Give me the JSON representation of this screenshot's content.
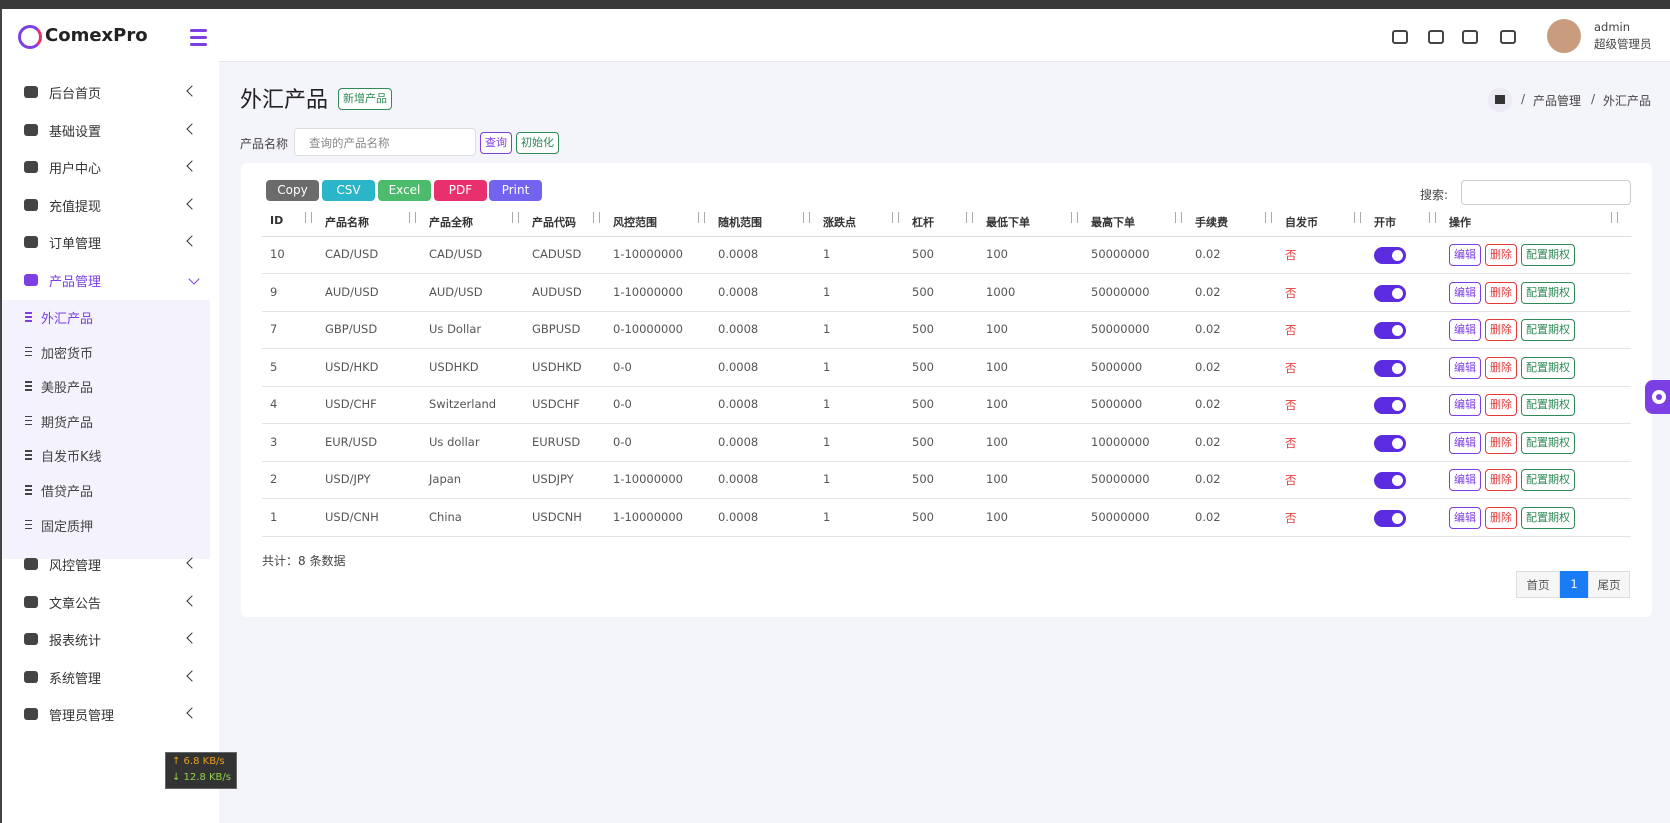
{
  "brand": "ComexPro",
  "user": {
    "name": "admin",
    "role": "超级管理员"
  },
  "menu": [
    {
      "label": "后台首页"
    },
    {
      "label": "基础设置"
    },
    {
      "label": "用户中心"
    },
    {
      "label": "充值提现"
    },
    {
      "label": "订单管理"
    },
    {
      "label": "产品管理",
      "children": [
        {
          "label": "外汇产品",
          "active": true
        },
        {
          "label": "加密货币"
        },
        {
          "label": "美股产品"
        },
        {
          "label": "期货产品"
        },
        {
          "label": "自发币K线"
        },
        {
          "label": "借贷产品"
        },
        {
          "label": "固定质押"
        }
      ]
    },
    {
      "label": "风控管理"
    },
    {
      "label": "文章公告"
    },
    {
      "label": "报表统计"
    },
    {
      "label": "系统管理"
    },
    {
      "label": "管理员管理"
    }
  ],
  "network": {
    "up": "↑ 6.8 KB/s",
    "down": "↓ 12.8 KB/s"
  },
  "page": {
    "title": "外汇产品",
    "add_button": "新增产品",
    "breadcrumb": [
      "产品管理",
      "外汇产品"
    ],
    "breadcrumb_separator": "/"
  },
  "filter": {
    "label": "产品名称",
    "placeholder": "查询的产品名称",
    "buttons": [
      "查询",
      "初始化"
    ]
  },
  "table": {
    "export_buttons": [
      "Copy",
      "CSV",
      "Excel",
      "PDF",
      "Print"
    ],
    "search_label": "搜索:",
    "columns": [
      "ID",
      "产品名称",
      "产品全称",
      "产品代码",
      "风控范围",
      "随机范围",
      "涨跌点",
      "杠杆",
      "最低下单",
      "最高下单",
      "手续费",
      "自发币",
      "开市",
      "操作"
    ],
    "rows": [
      [
        "10",
        "CAD/USD",
        "CAD/USD",
        "CADUSD",
        "1-10000000",
        "0.0008",
        "1",
        "500",
        "100",
        "50000000",
        "0.02",
        "否"
      ],
      [
        "9",
        "AUD/USD",
        "AUD/USD",
        "AUDUSD",
        "1-10000000",
        "0.0008",
        "1",
        "500",
        "1000",
        "50000000",
        "0.02",
        "否"
      ],
      [
        "7",
        "GBP/USD",
        "Us Dollar",
        "GBPUSD",
        "0-10000000",
        "0.0008",
        "1",
        "500",
        "100",
        "50000000",
        "0.02",
        "否"
      ],
      [
        "5",
        "USD/HKD",
        "USDHKD",
        "USDHKD",
        "0-0",
        "0.0008",
        "1",
        "500",
        "100",
        "5000000",
        "0.02",
        "否"
      ],
      [
        "4",
        "USD/CHF",
        "Switzerland",
        "USDCHF",
        "0-0",
        "0.0008",
        "1",
        "500",
        "100",
        "5000000",
        "0.02",
        "否"
      ],
      [
        "3",
        "EUR/USD",
        "Us dollar",
        "EURUSD",
        "0-0",
        "0.0008",
        "1",
        "500",
        "100",
        "10000000",
        "0.02",
        "否"
      ],
      [
        "2",
        "USD/JPY",
        "Japan",
        "USDJPY",
        "1-10000000",
        "0.0008",
        "1",
        "500",
        "100",
        "50000000",
        "0.02",
        "否"
      ],
      [
        "1",
        "USD/CNH",
        "China",
        "USDCNH",
        "1-10000000",
        "0.0008",
        "1",
        "500",
        "100",
        "50000000",
        "0.02",
        "否"
      ]
    ],
    "actions": [
      "编辑",
      "删除",
      "配置期权"
    ],
    "total": "共计：8 条数据"
  },
  "pagination": [
    "首页",
    "1",
    "尾页"
  ]
}
